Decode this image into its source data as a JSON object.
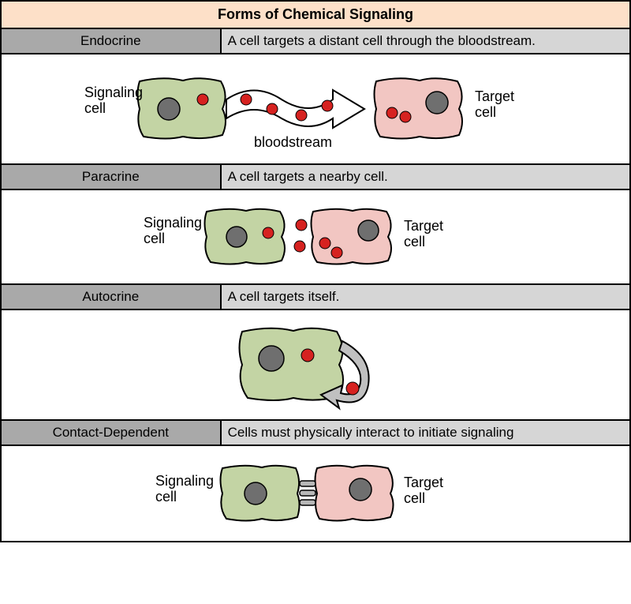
{
  "title": "Forms of Chemical Signaling",
  "title_bg": "#fde0c8",
  "title_fontsize": 18,
  "header_name_bg": "#a9a9a9",
  "header_desc_bg": "#d6d6d6",
  "header_fontsize": 17,
  "diagram_bg": "#ffffff",
  "signaling_cell_fill": "#c3d4a4",
  "target_cell_fill": "#f2c6c2",
  "cell_stroke": "#000000",
  "nucleus_fill": "#6f6f6f",
  "nucleus_stroke": "#000000",
  "signal_dot_fill": "#d62220",
  "signal_dot_stroke": "#000000",
  "arrow_fill": "#ffffff",
  "arrow_stroke": "#000000",
  "self_arrow_fill": "#c0c0c0",
  "junction_fill": "#b8b8b8",
  "junction_stroke": "#000000",
  "label_signaling": "Signaling\ncell",
  "label_target": "Target\ncell",
  "label_bloodstream": "bloodstream",
  "rows": [
    {
      "name": "Endocrine",
      "desc": "A cell targets a distant cell through the bloodstream.",
      "diagram_height": 140
    },
    {
      "name": "Paracrine",
      "desc": "A cell targets a nearby cell.",
      "diagram_height": 120
    },
    {
      "name": "Autocrine",
      "desc": "A cell targets itself.",
      "diagram_height": 140
    },
    {
      "name": "Contact-Dependent",
      "desc": "Cells must physically interact to initiate signaling",
      "diagram_height": 120
    }
  ]
}
